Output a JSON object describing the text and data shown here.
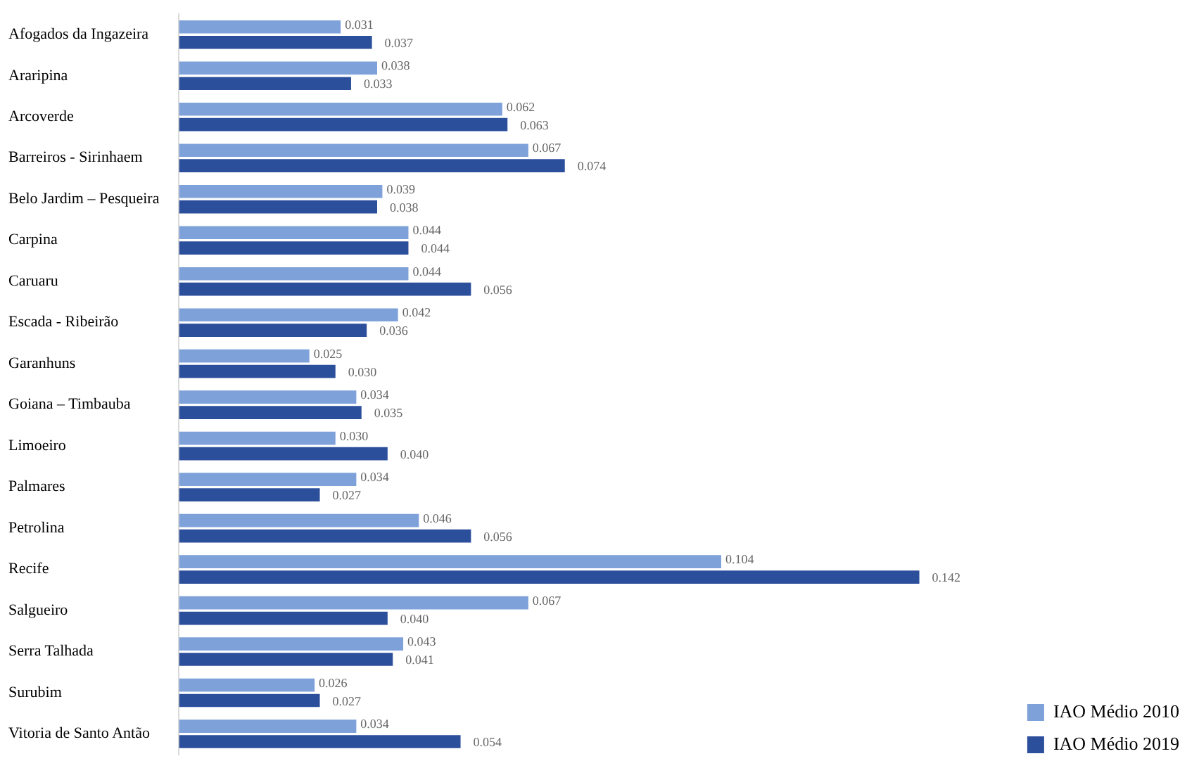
{
  "chart_data": {
    "type": "bar",
    "orientation": "horizontal",
    "categories": [
      "Afogados da Ingazeira",
      "Araripina",
      "Arcoverde",
      "Barreiros - Sirinhaem",
      "Belo Jardim – Pesqueira",
      "Carpina",
      "Caruaru",
      "Escada - Ribeirão",
      "Garanhuns",
      "Goiana – Timbauba",
      "Limoeiro",
      "Palmares",
      "Petrolina",
      "Recife",
      "Salgueiro",
      "Serra Talhada",
      "Surubim",
      "Vitoria de Santo Antão"
    ],
    "series": [
      {
        "name": "IAO Médio 2010",
        "color": "#7ea1da",
        "values": [
          0.031,
          0.038,
          0.062,
          0.067,
          0.039,
          0.044,
          0.044,
          0.042,
          0.025,
          0.034,
          0.03,
          0.034,
          0.046,
          0.104,
          0.067,
          0.043,
          0.026,
          0.034
        ],
        "value_labels": [
          "0.031",
          "0.038",
          "0.062",
          "0.067",
          "0.039",
          "0.044",
          "0.044",
          "0.042",
          "0.025",
          "0.034",
          "0.030",
          "0.034",
          "0.046",
          "0.104",
          "0.067",
          "0.043",
          "0.026",
          "0.034"
        ]
      },
      {
        "name": "IAO Médio 2019",
        "color": "#2c4f9c",
        "values": [
          0.037,
          0.033,
          0.063,
          0.074,
          0.038,
          0.044,
          0.056,
          0.036,
          0.03,
          0.035,
          0.04,
          0.027,
          0.056,
          0.142,
          0.04,
          0.041,
          0.027,
          0.054
        ],
        "value_labels": [
          "0.037",
          "0.033",
          "0.063",
          "0.074",
          "0.038",
          "0.044",
          "0.056",
          "0.036",
          "0.030",
          "0.035",
          "0.040",
          "0.027",
          "0.056",
          "0.142",
          "0.040",
          "0.041",
          "0.027",
          "0.054"
        ]
      }
    ],
    "legend": "bottom right"
  }
}
